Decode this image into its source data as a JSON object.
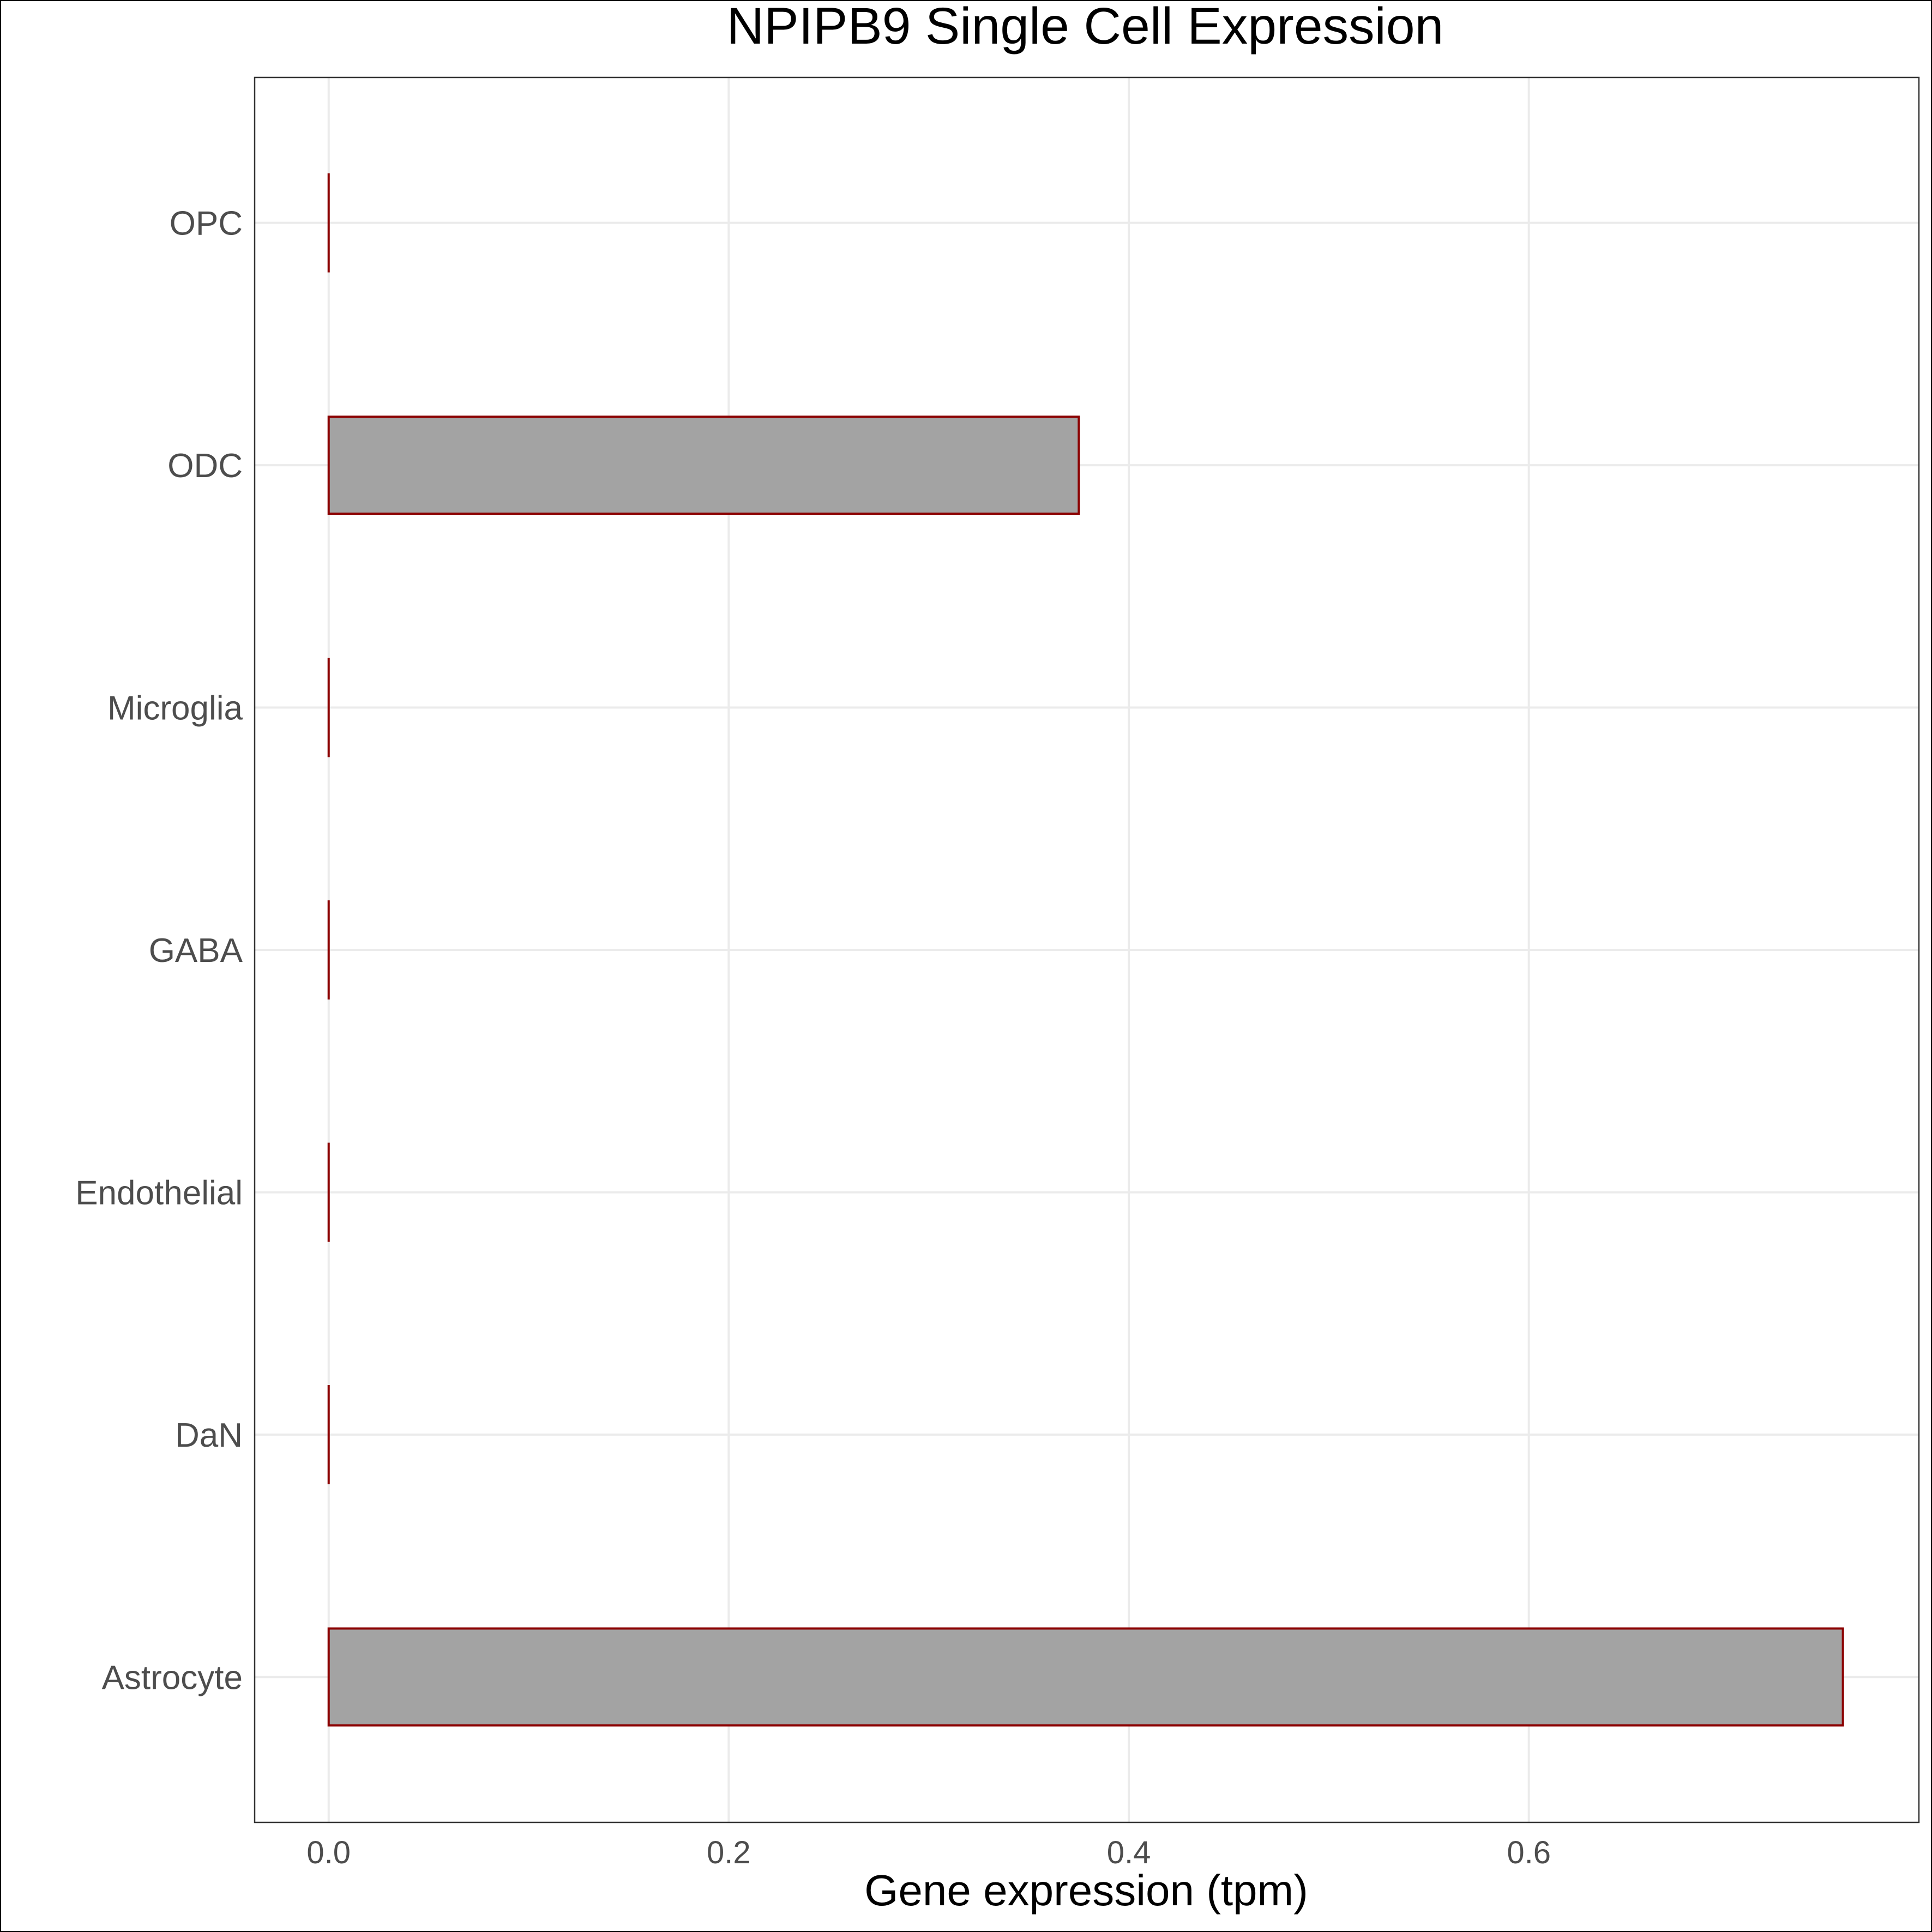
{
  "chart_data": {
    "type": "bar",
    "orientation": "horizontal",
    "title": "NPIPB9 Single Cell Expression",
    "xlabel": "Gene expression (tpm)",
    "ylabel": "",
    "categories": [
      "Astrocyte",
      "DaN",
      "Endothelial",
      "GABA",
      "Microglia",
      "ODC",
      "OPC"
    ],
    "values": [
      0.757,
      0.0,
      0.0,
      0.0,
      0.0,
      0.375,
      0.0
    ],
    "xlim": [
      -0.037,
      0.795
    ],
    "xticks": [
      0.0,
      0.2,
      0.4,
      0.6
    ],
    "xtick_labels": [
      "0.0",
      "0.2",
      "0.4",
      "0.6"
    ],
    "grid": true,
    "legend": "none",
    "colors": {
      "bar_fill": "#a3a3a3",
      "bar_stroke": "#8b0000",
      "grid": "#ebebeb",
      "panel_border": "#333333",
      "tick_label": "#4d4d4d",
      "title": "#000000"
    }
  }
}
